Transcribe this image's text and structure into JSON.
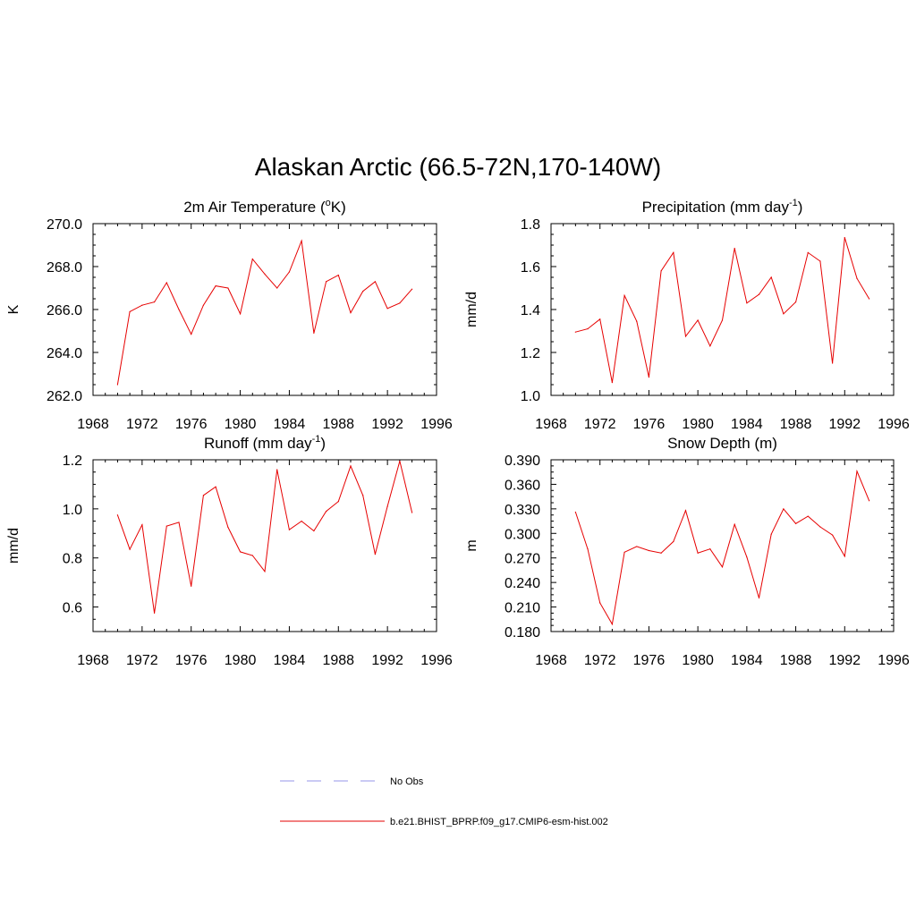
{
  "figure_title": "Alaskan Arctic (66.5-72N,170-140W)",
  "colors": {
    "model_line": "#e60000",
    "obs_line": "#aaaaee",
    "axis": "#000000"
  },
  "legend": [
    {
      "label": "No Obs",
      "style": "dashed",
      "color": "#aaaaee"
    },
    {
      "label": "b.e21.BHIST_BPRP.f09_g17.CMIP6-esm-hist.002",
      "style": "solid",
      "color": "#e60000"
    }
  ],
  "chart_data": [
    {
      "type": "line",
      "title": "2m Air Temperature (°K)",
      "title_main": "2m Air Temperature (",
      "title_sup": "o",
      "title_tail": "K)",
      "ylabel": "K",
      "xlim": [
        1968,
        1996
      ],
      "ylim": [
        262,
        270
      ],
      "x_ticks": [
        "1968",
        "1972",
        "1976",
        "1980",
        "1984",
        "1988",
        "1992",
        "1996"
      ],
      "y_ticks": [
        "262.0",
        "264.0",
        "266.0",
        "268.0",
        "270.0"
      ],
      "y_tick_values": [
        262,
        264,
        266,
        268,
        270
      ],
      "series": [
        {
          "name": "b.e21.BHIST_BPRP.f09_g17.CMIP6-esm-hist.002",
          "x": [
            1970,
            1971,
            1972,
            1973,
            1974,
            1975,
            1976,
            1977,
            1978,
            1979,
            1980,
            1981,
            1982,
            1983,
            1984,
            1985,
            1986,
            1987,
            1988,
            1989,
            1990,
            1991,
            1992,
            1993,
            1994
          ],
          "values": [
            262.5,
            265.9,
            266.2,
            266.35,
            267.25,
            266.0,
            264.85,
            266.2,
            267.1,
            267.0,
            265.8,
            268.35,
            267.65,
            267.0,
            267.75,
            269.2,
            264.9,
            267.3,
            267.6,
            265.85,
            266.85,
            267.3,
            266.05,
            266.3,
            266.95
          ]
        }
      ]
    },
    {
      "type": "line",
      "title": "Precipitation (mm day-1)",
      "title_main": "Precipitation (mm day",
      "title_sup": "-1",
      "title_tail": ")",
      "ylabel": "mm/d",
      "xlim": [
        1968,
        1996
      ],
      "ylim": [
        1.0,
        1.8
      ],
      "x_ticks": [
        "1968",
        "1972",
        "1976",
        "1980",
        "1984",
        "1988",
        "1992",
        "1996"
      ],
      "y_ticks": [
        "1.0",
        "1.2",
        "1.4",
        "1.6",
        "1.8"
      ],
      "y_tick_values": [
        1.0,
        1.2,
        1.4,
        1.6,
        1.8
      ],
      "series": [
        {
          "name": "b.e21.BHIST_BPRP.f09_g17.CMIP6-esm-hist.002",
          "x": [
            1970,
            1971,
            1972,
            1973,
            1974,
            1975,
            1976,
            1977,
            1978,
            1979,
            1980,
            1981,
            1982,
            1983,
            1984,
            1985,
            1986,
            1987,
            1988,
            1989,
            1990,
            1991,
            1992,
            1993,
            1994
          ],
          "values": [
            1.295,
            1.31,
            1.355,
            1.06,
            1.465,
            1.345,
            1.085,
            1.58,
            1.665,
            1.275,
            1.35,
            1.23,
            1.35,
            1.685,
            1.43,
            1.47,
            1.55,
            1.38,
            1.435,
            1.665,
            1.625,
            1.15,
            1.735,
            1.545,
            1.45
          ]
        }
      ]
    },
    {
      "type": "line",
      "title": "Runoff (mm day-1)",
      "title_main": "Runoff (mm day",
      "title_sup": "-1",
      "title_tail": ")",
      "ylabel": "mm/d",
      "xlim": [
        1968,
        1996
      ],
      "ylim": [
        0.5,
        1.2
      ],
      "x_ticks": [
        "1968",
        "1972",
        "1976",
        "1980",
        "1984",
        "1988",
        "1992",
        "1996"
      ],
      "y_ticks": [
        "0.6",
        "0.8",
        "1.0",
        "1.2"
      ],
      "y_tick_values": [
        0.6,
        0.8,
        1.0,
        1.2
      ],
      "series": [
        {
          "name": "b.e21.BHIST_BPRP.f09_g17.CMIP6-esm-hist.002",
          "x": [
            1970,
            1971,
            1972,
            1973,
            1974,
            1975,
            1976,
            1977,
            1978,
            1979,
            1980,
            1981,
            1982,
            1983,
            1984,
            1985,
            1986,
            1987,
            1988,
            1989,
            1990,
            1991,
            1992,
            1993,
            1994
          ],
          "values": [
            0.975,
            0.835,
            0.935,
            0.575,
            0.93,
            0.945,
            0.685,
            1.055,
            1.09,
            0.925,
            0.825,
            0.81,
            0.745,
            1.16,
            0.915,
            0.95,
            0.91,
            0.99,
            1.03,
            1.175,
            1.055,
            0.815,
            1.01,
            1.195,
            0.985
          ]
        }
      ]
    },
    {
      "type": "line",
      "title": "Snow Depth (m)",
      "title_main": "Snow Depth (m)",
      "title_sup": "",
      "title_tail": "",
      "ylabel": "m",
      "xlim": [
        1968,
        1996
      ],
      "ylim": [
        0.18,
        0.39
      ],
      "x_ticks": [
        "1968",
        "1972",
        "1976",
        "1980",
        "1984",
        "1988",
        "1992",
        "1996"
      ],
      "y_ticks": [
        "0.180",
        "0.210",
        "0.240",
        "0.270",
        "0.300",
        "0.330",
        "0.360",
        "0.390"
      ],
      "y_tick_values": [
        0.18,
        0.21,
        0.24,
        0.27,
        0.3,
        0.33,
        0.36,
        0.39
      ],
      "series": [
        {
          "name": "b.e21.BHIST_BPRP.f09_g17.CMIP6-esm-hist.002",
          "x": [
            1970,
            1971,
            1972,
            1973,
            1974,
            1975,
            1976,
            1977,
            1978,
            1979,
            1980,
            1981,
            1982,
            1983,
            1984,
            1985,
            1986,
            1987,
            1988,
            1989,
            1990,
            1991,
            1992,
            1993,
            1994
          ],
          "values": [
            0.326,
            0.281,
            0.215,
            0.189,
            0.277,
            0.284,
            0.279,
            0.276,
            0.29,
            0.328,
            0.276,
            0.281,
            0.259,
            0.311,
            0.271,
            0.221,
            0.299,
            0.33,
            0.312,
            0.321,
            0.308,
            0.298,
            0.272,
            0.376,
            0.34
          ]
        }
      ]
    }
  ]
}
